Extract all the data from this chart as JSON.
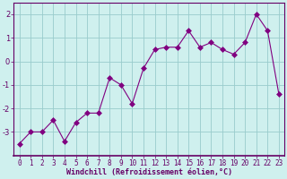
{
  "x": [
    0,
    1,
    2,
    3,
    4,
    5,
    6,
    7,
    8,
    9,
    10,
    11,
    12,
    13,
    14,
    15,
    16,
    17,
    18,
    19,
    20,
    21,
    22,
    23
  ],
  "y": [
    -3.5,
    -3.0,
    -3.0,
    -2.5,
    -3.4,
    -2.6,
    -2.2,
    -2.2,
    -0.7,
    -1.0,
    -1.8,
    -0.3,
    0.5,
    0.6,
    0.6,
    1.3,
    0.6,
    0.8,
    0.5,
    0.3,
    0.8,
    2.0,
    1.3,
    -1.4
  ],
  "line_color": "#800080",
  "marker": "D",
  "bg_color": "#cff0ee",
  "grid_color": "#99cccc",
  "axis_color": "#660066",
  "spine_color": "#660066",
  "xlabel": "Windchill (Refroidissement éolien,°C)",
  "xlim": [
    -0.5,
    23.5
  ],
  "ylim": [
    -4.0,
    2.5
  ],
  "yticks": [
    -3,
    -2,
    -1,
    0,
    1,
    2
  ],
  "xticks": [
    0,
    1,
    2,
    3,
    4,
    5,
    6,
    7,
    8,
    9,
    10,
    11,
    12,
    13,
    14,
    15,
    16,
    17,
    18,
    19,
    20,
    21,
    22,
    23
  ],
  "font_color": "#660066",
  "tick_fontsize": 5.5,
  "xlabel_fontsize": 6.0,
  "marker_size": 3
}
